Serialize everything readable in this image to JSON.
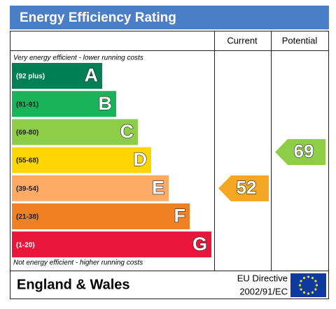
{
  "header": {
    "title": "Energy Efficiency Rating"
  },
  "columns": [
    "Current",
    "Potential"
  ],
  "top_note": "Very energy efficient - lower running costs",
  "bottom_note": "Not energy efficient - higher running costs",
  "bands": [
    {
      "range": "(92 plus)",
      "letter": "A",
      "color": "#008054"
    },
    {
      "range": "(81-91)",
      "letter": "B",
      "color": "#19b459"
    },
    {
      "range": "(69-80)",
      "letter": "C",
      "color": "#8dce46"
    },
    {
      "range": "(55-68)",
      "letter": "D",
      "color": "#ffd500"
    },
    {
      "range": "(39-54)",
      "letter": "E",
      "color": "#fcaa65"
    },
    {
      "range": "(21-38)",
      "letter": "F",
      "color": "#ef8023"
    },
    {
      "range": "(1-20)",
      "letter": "G",
      "color": "#e9153b"
    }
  ],
  "current": {
    "value": 52,
    "color": "#f5a623"
  },
  "potential": {
    "value": 69,
    "color": "#8dce46"
  },
  "footer": {
    "region": "England & Wales",
    "directive_line1": "EU Directive",
    "directive_line2": "2002/91/EC"
  }
}
